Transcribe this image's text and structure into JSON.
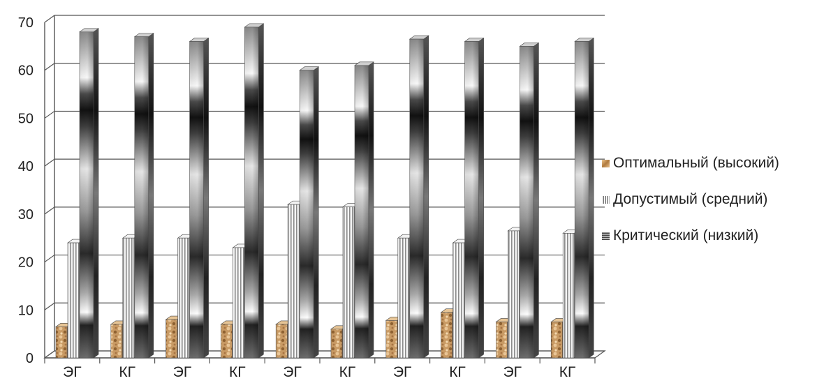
{
  "chart_data": {
    "type": "bar",
    "categories": [
      "ЭГ",
      "КГ",
      "ЭГ",
      "КГ",
      "ЭГ",
      "КГ",
      "ЭГ",
      "КГ",
      "ЭГ",
      "КГ"
    ],
    "series": [
      {
        "name": "Оптимальный (высокий)",
        "values": [
          6.5,
          7,
          8,
          7,
          7,
          6,
          7.8,
          9.5,
          7.5,
          7.5
        ]
      },
      {
        "name": "Допустимый (средний)",
        "values": [
          24,
          25,
          25,
          23,
          32,
          31.5,
          25,
          24,
          26.5,
          26
        ]
      },
      {
        "name": "Критический (низкий)",
        "values": [
          68,
          67,
          66,
          69,
          60,
          61,
          66.5,
          66,
          65,
          66
        ]
      }
    ],
    "ylim": [
      0,
      70
    ],
    "yticks": [
      "0",
      "10",
      "20",
      "30",
      "40",
      "50",
      "60",
      "70"
    ],
    "grid": true,
    "legend_position": "right",
    "style": "3d-column"
  }
}
